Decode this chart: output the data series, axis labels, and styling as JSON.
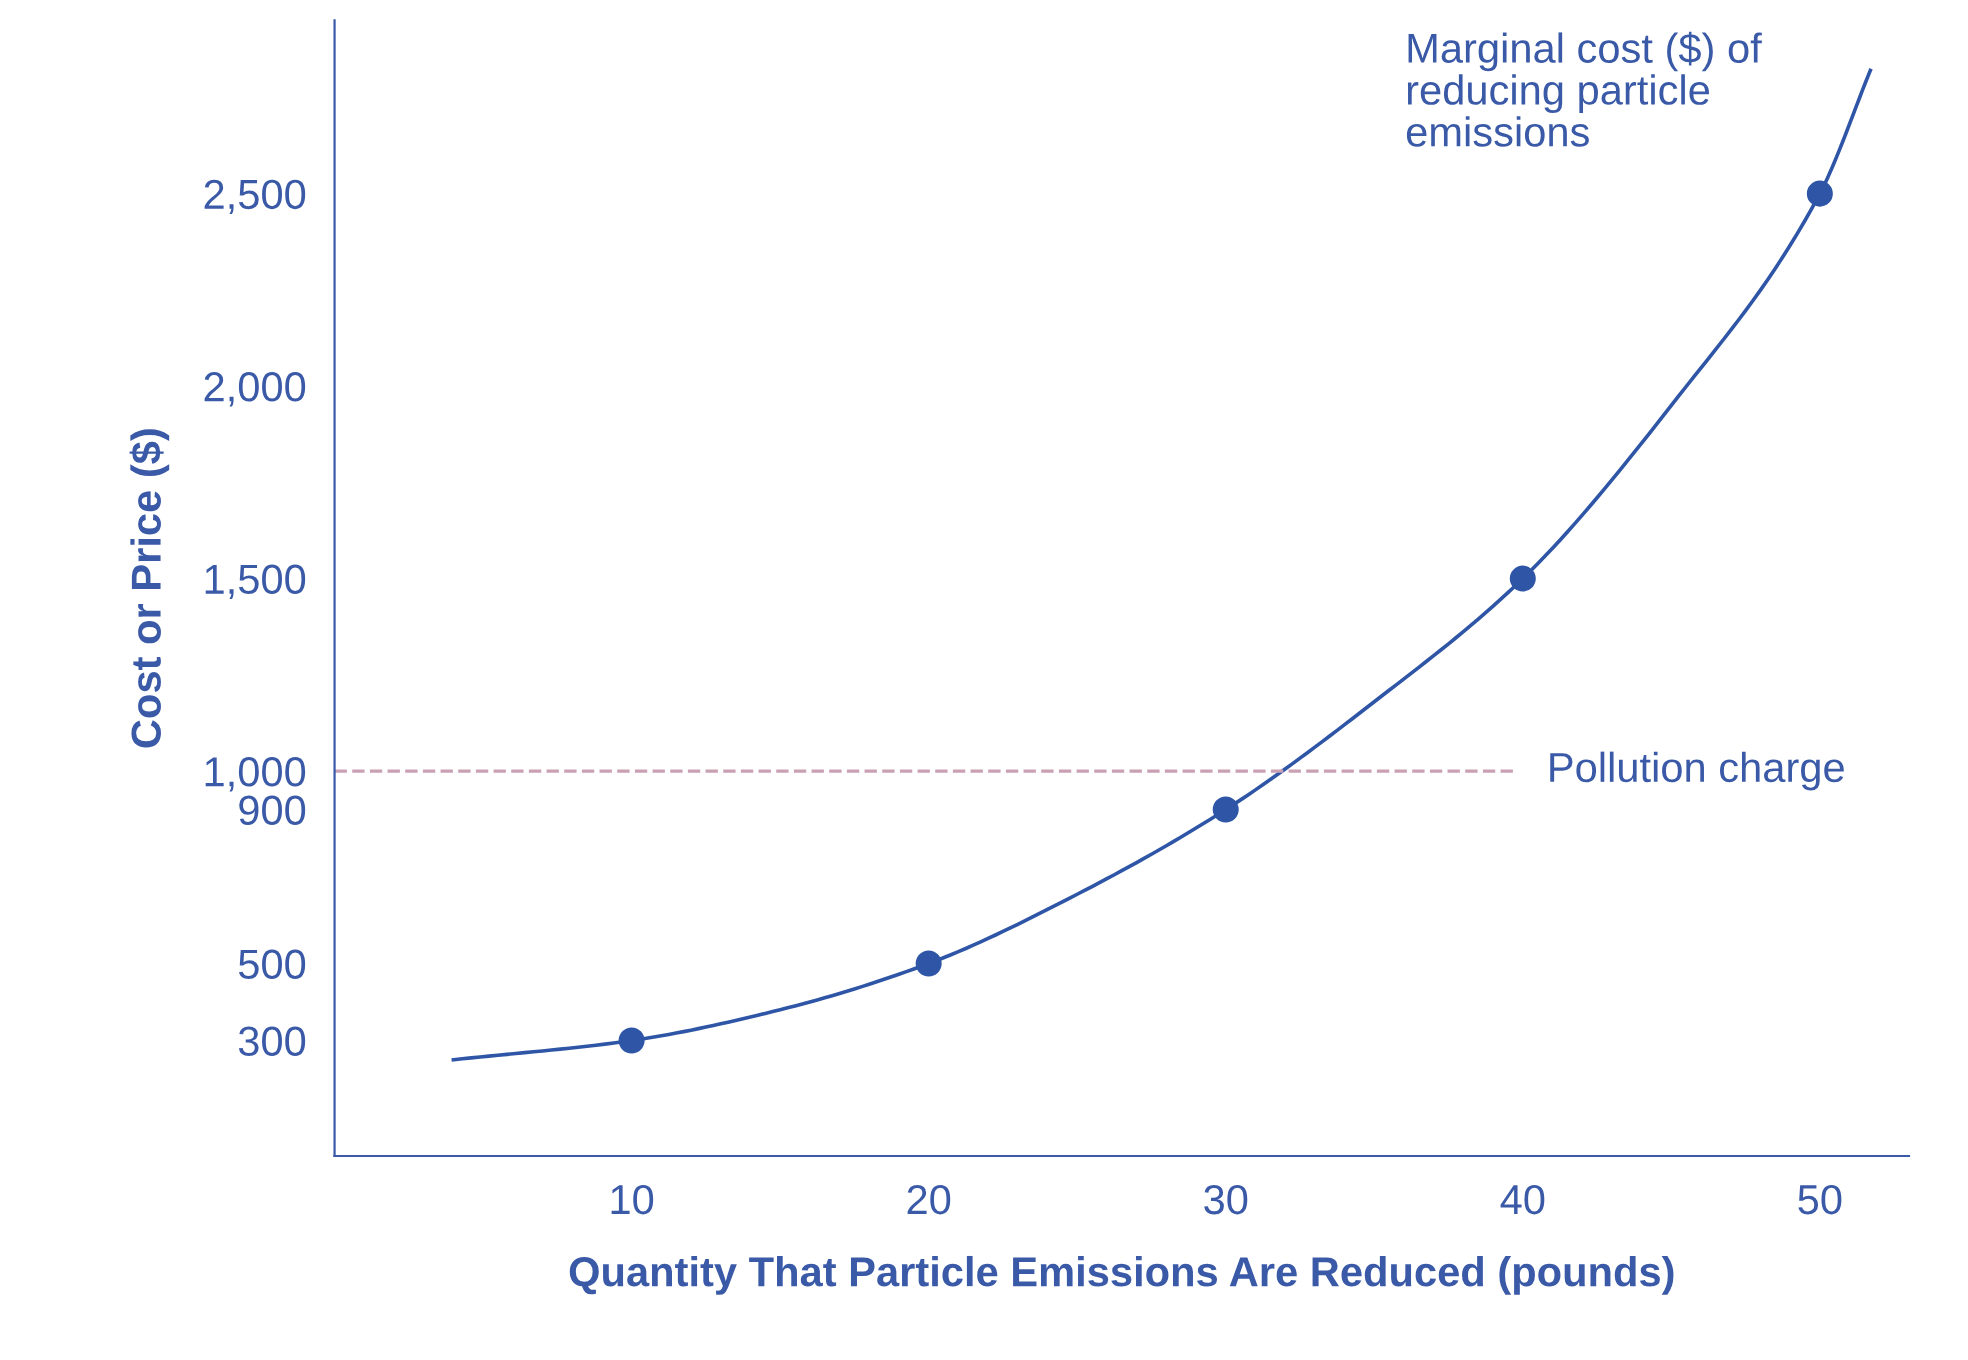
{
  "chart_data": {
    "type": "line",
    "xlabel": "Quantity That Particle Emissions Are Reduced (pounds)",
    "ylabel": "Cost or Price ($)",
    "series": [
      {
        "color": "#2f56a6",
        "x": [
          4,
          10,
          15,
          20,
          25,
          30,
          35,
          40,
          45,
          50,
          51.7
        ],
        "values": [
          250,
          300,
          380,
          500,
          680,
          900,
          1180,
          1500,
          1950,
          2500,
          2820
        ],
        "marker": "none"
      },
      {
        "type": "scatter",
        "color": "#2f56a6",
        "x": [
          10,
          20,
          30,
          40,
          50
        ],
        "values": [
          300,
          500,
          900,
          1500,
          2500
        ],
        "marker": "circle"
      }
    ],
    "xlim": [
      0,
      53
    ],
    "ylim": [
      0,
      2950
    ],
    "xticks": [
      10,
      20,
      30,
      40,
      50
    ],
    "yticks": [
      300,
      500,
      900,
      {
        "value": 1000,
        "label": "1,000"
      },
      {
        "value": 1500,
        "label": "1,500"
      },
      {
        "value": 2000,
        "label": "2,000"
      },
      {
        "value": 2500,
        "label": "2,500"
      }
    ],
    "ref_lines": [
      {
        "axis": "y",
        "value": 1000,
        "label": "Pollution charge",
        "color": "#c9a0b4",
        "line_style": "dashed"
      }
    ],
    "annotations": [
      "Marginal cost ($) of\nreducing particle\nemissions"
    ],
    "grid": false,
    "legend": false
  }
}
